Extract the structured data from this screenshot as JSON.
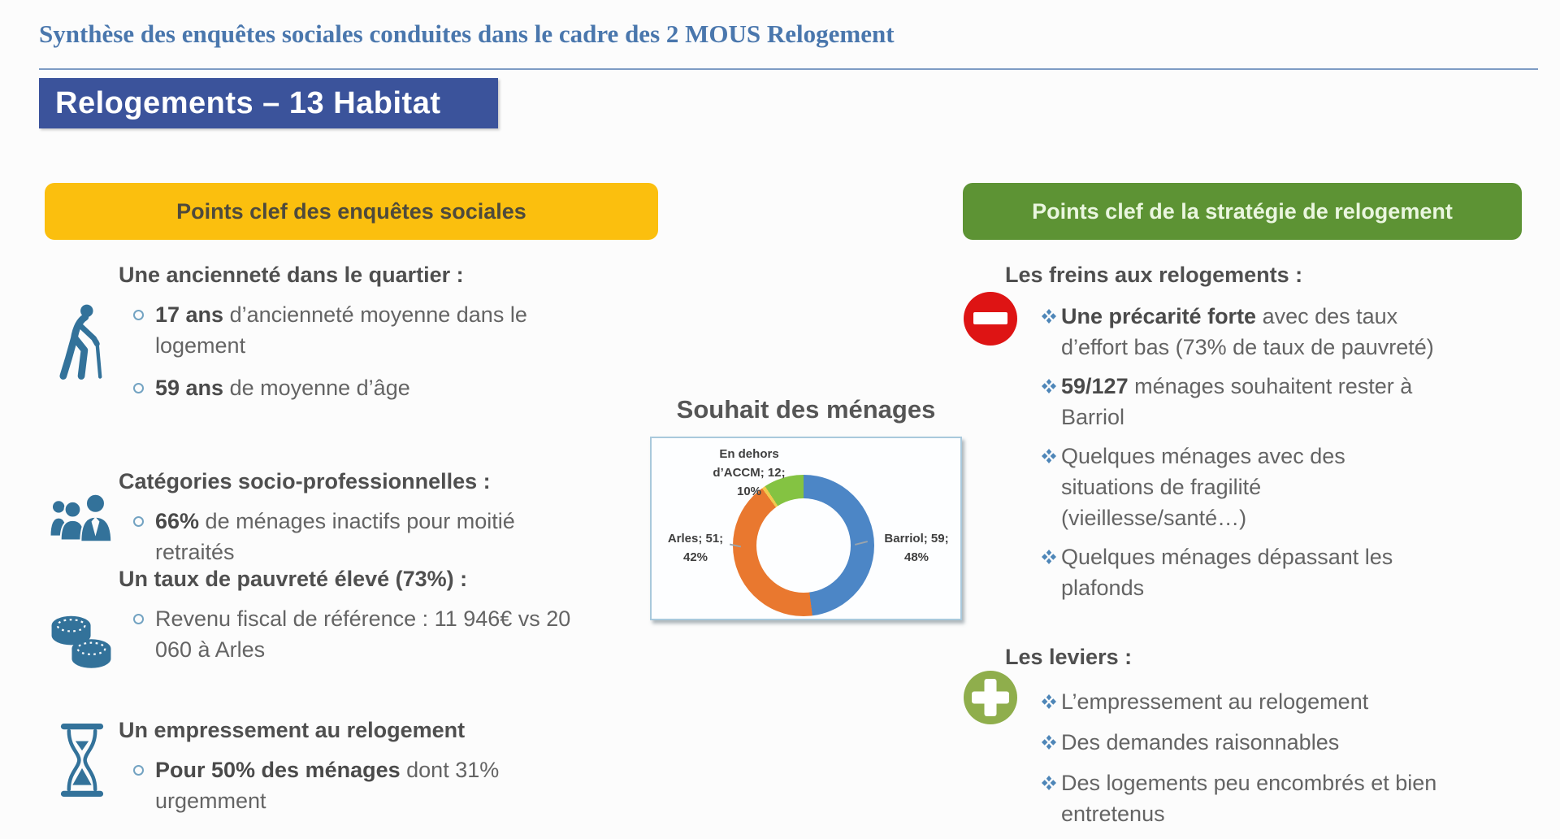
{
  "page": {
    "title": "Synthèse des enquêtes sociales conduites dans le cadre des 2 MOUS Relogement",
    "slide_title": "Relogements – 13 Habitat"
  },
  "left_panel": {
    "header": "Points clef des enquêtes sociales",
    "sections": [
      {
        "icon": "elderly-person-icon",
        "heading": "Une ancienneté dans le quartier :",
        "bullets": [
          {
            "bold": "17 ans",
            "rest": " d’ancienneté moyenne dans le logement"
          },
          {
            "bold": "59 ans",
            "rest": " de moyenne d’âge"
          }
        ]
      },
      {
        "icon": "people-group-icon",
        "heading": "Catégories socio-professionnelles :",
        "bullets": [
          {
            "bold": "66%",
            "rest": " de ménages inactifs pour moitié retraités"
          }
        ]
      },
      {
        "icon": "coins-icon",
        "heading": "Un taux de pauvreté élevé (73%) :",
        "bullets": [
          {
            "bold": "",
            "rest": "Revenu fiscal de référence : 11 946€ vs 20 060 à Arles"
          }
        ]
      },
      {
        "icon": "hourglass-icon",
        "heading": "Un empressement au relogement",
        "bullets": [
          {
            "bold": "Pour 50% des ménages",
            "rest": " dont 31% urgemment"
          }
        ]
      }
    ]
  },
  "right_panel": {
    "header": "Points clef de la stratégie de relogement",
    "groups": [
      {
        "icon": "no-entry-icon",
        "heading": "Les freins aux relogements :",
        "bullets": [
          {
            "bold": "Une précarité forte",
            "rest": " avec des taux d’effort bas (73% de taux de pauvreté)"
          },
          {
            "bold": "59/127",
            "rest": " ménages souhaitent rester à Barriol"
          },
          {
            "bold": "",
            "rest": "Quelques ménages avec des situations de fragilité (vieillesse/santé…)"
          },
          {
            "bold": "",
            "rest": "Quelques ménages dépassant les plafonds"
          }
        ]
      },
      {
        "icon": "plus-icon",
        "heading": "Les leviers :",
        "bullets": [
          {
            "bold": "",
            "rest": "L’empressement au relogement"
          },
          {
            "bold": "",
            "rest": "Des demandes raisonnables"
          },
          {
            "bold": "",
            "rest": "Des logements peu encombrés et bien entretenus"
          }
        ]
      }
    ]
  },
  "chart_data": {
    "type": "pie",
    "donut": true,
    "title": "Souhait des ménages",
    "start_angle_deg": 0,
    "direction": "clockwise",
    "slices": [
      {
        "label": "Barriol",
        "value": 59,
        "percent": 48,
        "color": "#4C86C6",
        "label_lines": [
          "Barriol; 59;",
          "48%"
        ]
      },
      {
        "label": "Arles",
        "value": 51,
        "percent": 42,
        "color": "#E9782F",
        "label_lines": [
          "Arles; 51;",
          "42%"
        ]
      },
      {
        "label": "En dehors d’ACCM",
        "value": 12,
        "percent": 10,
        "color": "#84C342",
        "label_lines": [
          "En dehors",
          "d’ACCM; 12;",
          "10%"
        ]
      }
    ]
  },
  "colors": {
    "title_blue": "#4A77AD",
    "slide_banner_blue": "#3B539B",
    "panel_yellow": "#FBBF0E",
    "panel_yellow_text": "#4E4A3C",
    "panel_green": "#5D9334",
    "panel_green_text": "#EAF6DF",
    "body_text": "#595959",
    "icon_blue": "#33729A",
    "diamond_bullet_blue": "#4E86B8",
    "no_entry_red": "#DE1414",
    "plus_green": "#8FAE4C",
    "chart_border": "#A9C9DC",
    "slice_divider_yellow": "#F1C94F"
  }
}
